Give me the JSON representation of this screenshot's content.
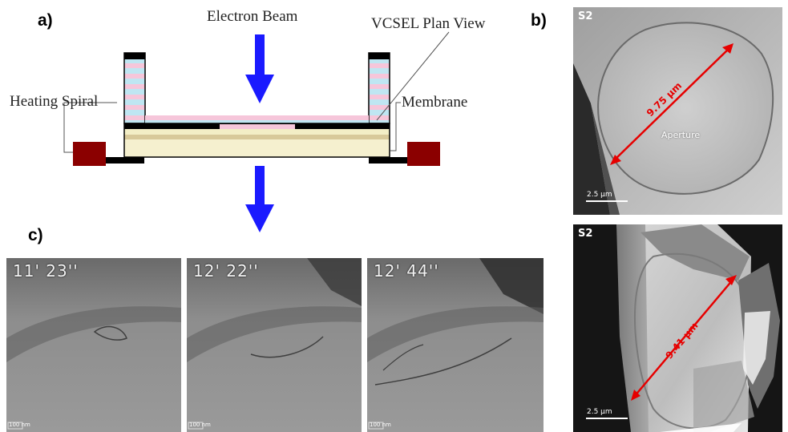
{
  "panels": {
    "a": "a)",
    "b": "b)",
    "c": "c)"
  },
  "diagram": {
    "electron_beam": "Electron Beam",
    "vcsel_plan_view": "VCSEL Plan View",
    "heating_spiral": "Heating Spiral",
    "membrane": "Membrane"
  },
  "panel_b": {
    "top": {
      "sample": "S2",
      "diameter": "9.75 µm",
      "region": "Aperture",
      "scale": "2.5 µm"
    },
    "bottom": {
      "sample": "S2",
      "diameter": "9.41 µm",
      "scale": "2.5 µm"
    }
  },
  "panel_c": {
    "frames": [
      {
        "time": "11' 23''",
        "scale": "100 nm"
      },
      {
        "time": "12' 22''",
        "scale": "100 nm"
      },
      {
        "time": "12' 44''",
        "scale": "100 nm"
      }
    ]
  },
  "colors": {
    "beam_arrow": "#1a1aff",
    "heater": "#8b0000",
    "dbr_pink": "#f6c6da",
    "dbr_blue": "#bfe6f2",
    "substrate": "#f3eec6",
    "measure_arrow": "#e60000"
  }
}
